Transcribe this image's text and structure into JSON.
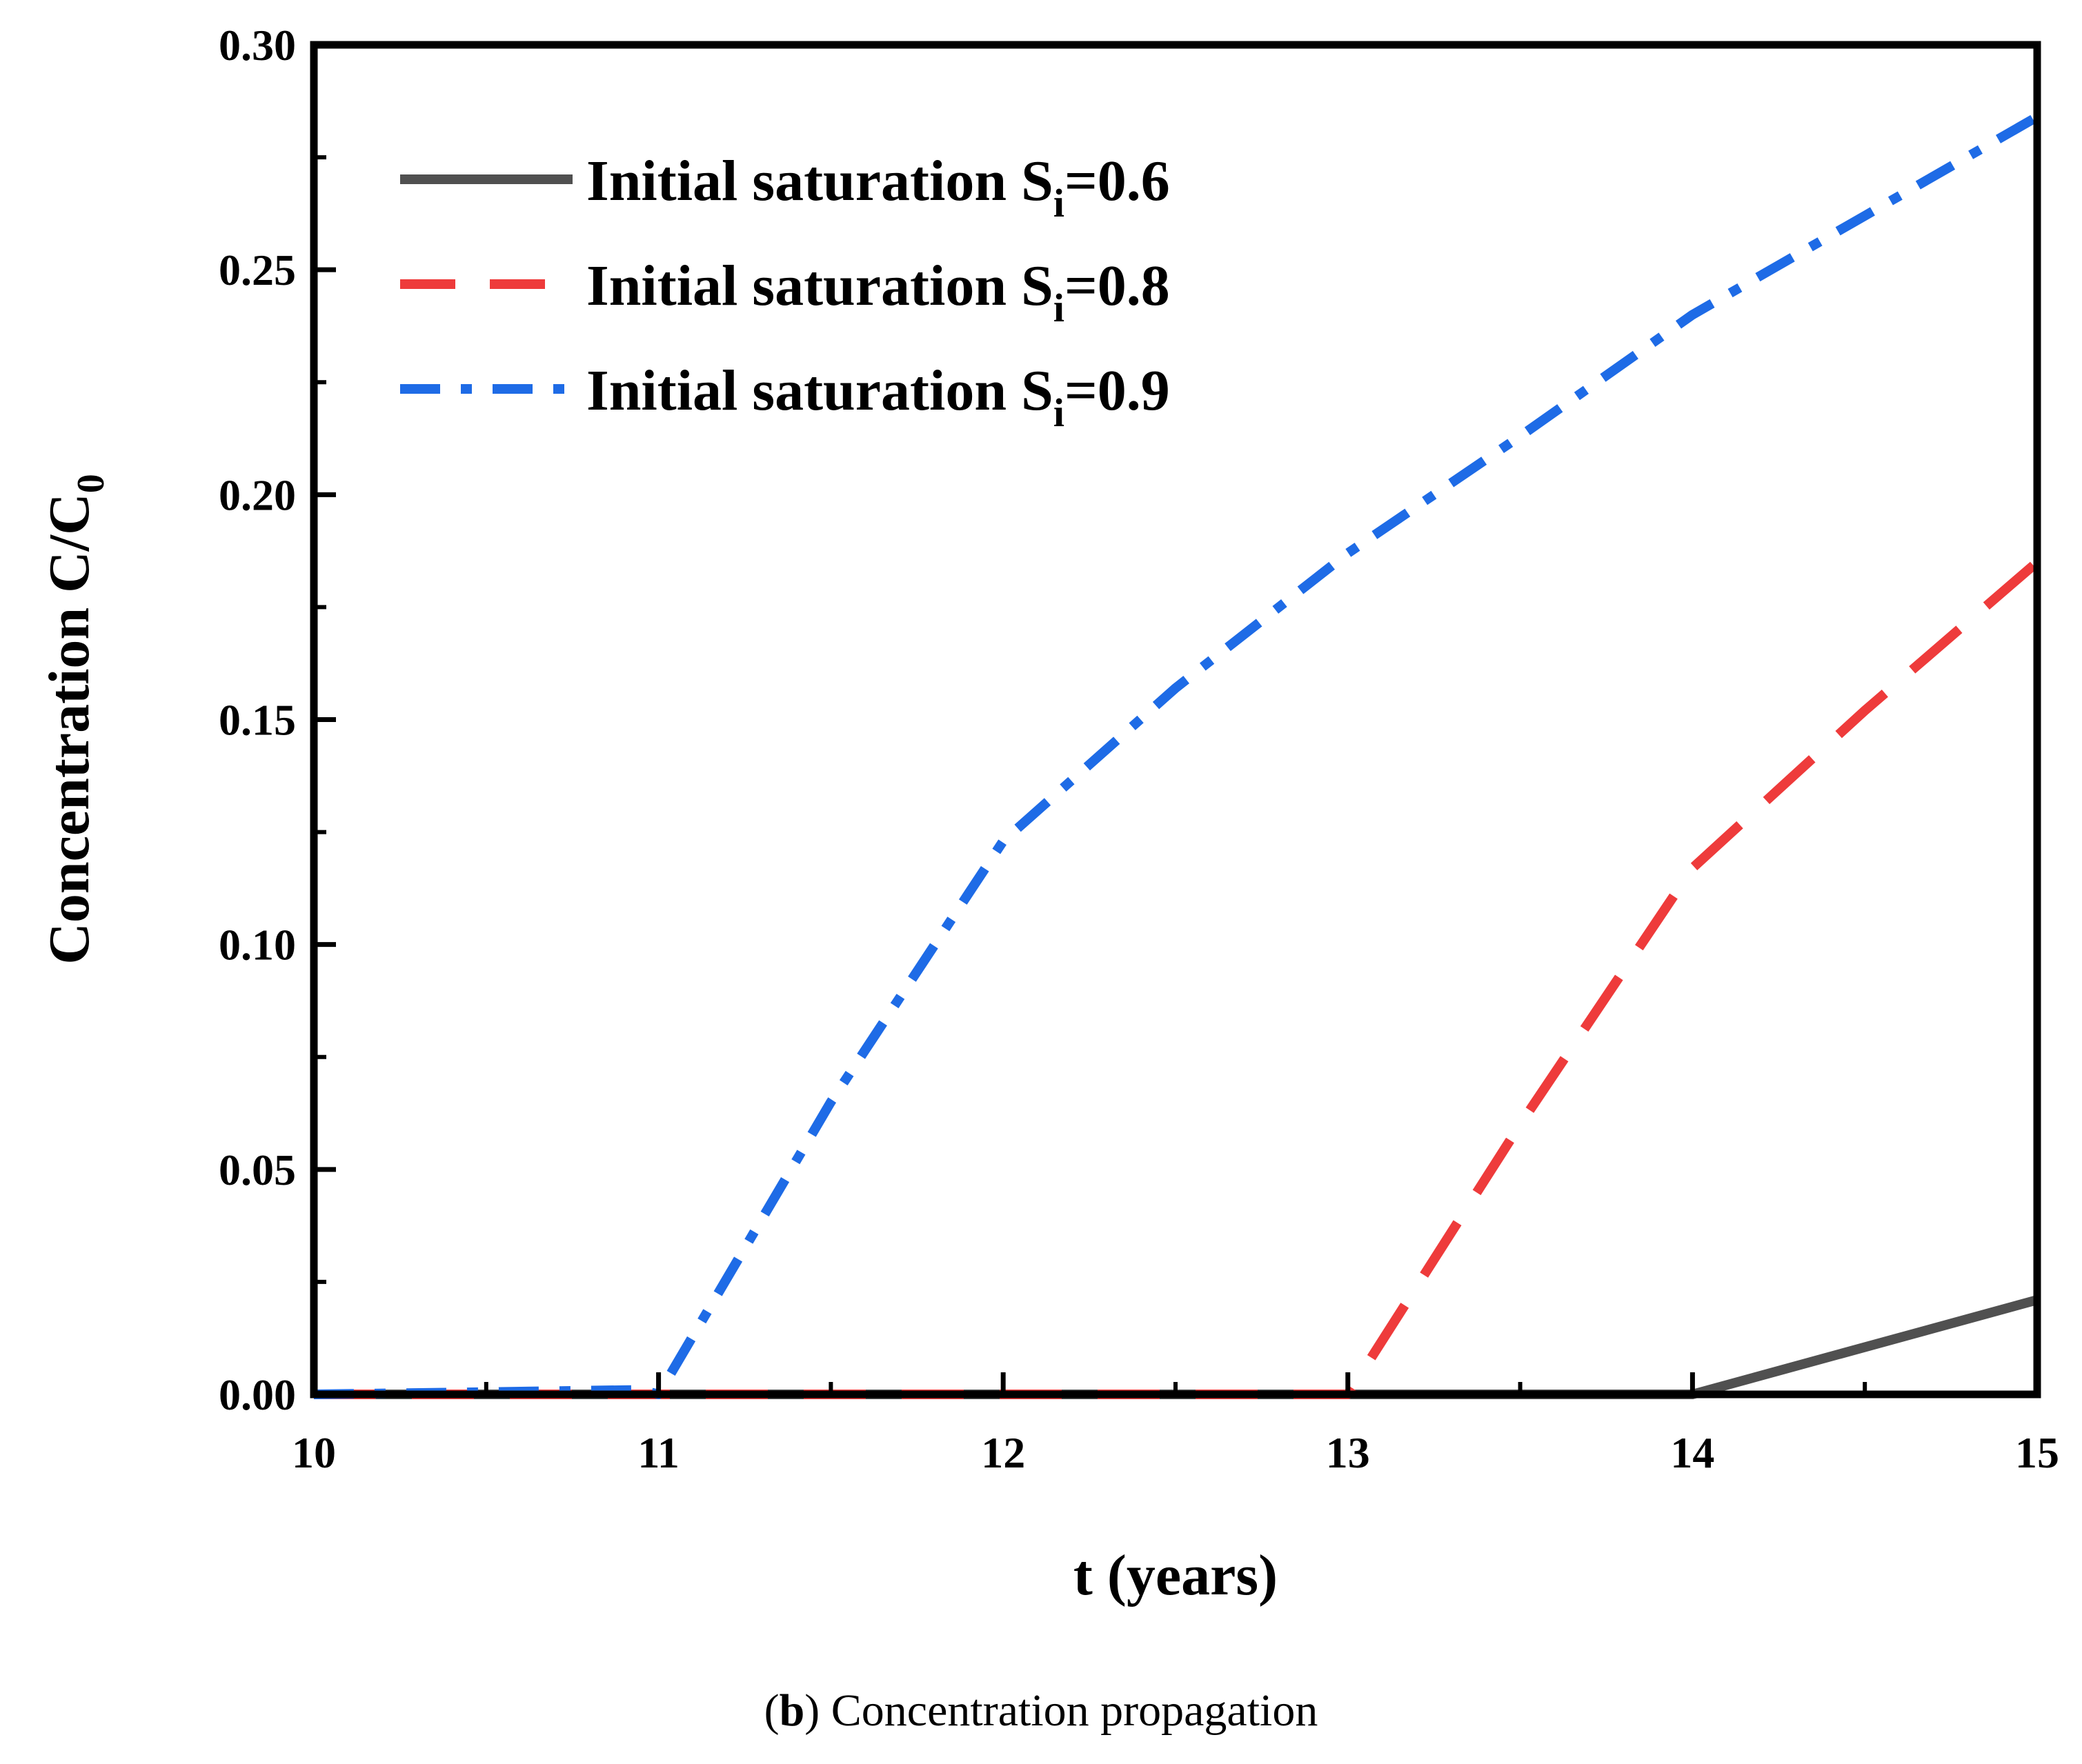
{
  "chart_data": {
    "type": "line",
    "title": "",
    "xlabel": "t (years)",
    "ylabel_main": "Concentration C/C",
    "ylabel_sub": "0",
    "xlim": [
      10,
      15
    ],
    "ylim": [
      0,
      0.3
    ],
    "x_ticks": [
      10,
      11,
      12,
      13,
      14,
      15
    ],
    "x_tick_labels": [
      "10",
      "11",
      "12",
      "13",
      "14",
      "15"
    ],
    "y_ticks": [
      0,
      0.05,
      0.1,
      0.15,
      0.2,
      0.25,
      0.3
    ],
    "y_tick_labels": [
      "0.00",
      "0.05",
      "0.10",
      "0.15",
      "0.20",
      "0.25",
      "0.30"
    ],
    "grid": false,
    "legend_position": "top-left",
    "series": [
      {
        "name": "Initial saturation Si=0.6",
        "label_main": "Initial saturation S",
        "label_sub": "i",
        "label_tail": "=0.6",
        "color": "#505050",
        "style": "solid",
        "x": [
          10,
          11,
          12,
          13,
          14,
          15
        ],
        "y": [
          0,
          0,
          0,
          0,
          0,
          0.021
        ]
      },
      {
        "name": "Initial saturation Si=0.8",
        "label_main": "Initial saturation S",
        "label_sub": "i",
        "label_tail": "=0.8",
        "color": "#EE3B3B",
        "style": "dash",
        "x": [
          10,
          11,
          12,
          13,
          13.5,
          14,
          14.5,
          15
        ],
        "y": [
          0,
          0,
          0,
          0,
          0.06,
          0.117,
          0.152,
          0.185
        ]
      },
      {
        "name": "Initial saturation Si=0.9",
        "label_main": "Initial saturation S",
        "label_sub": "i",
        "label_tail": "=0.9",
        "color": "#1E6BE6",
        "style": "dashdot",
        "x": [
          10,
          10.5,
          10.95,
          11,
          11.5,
          12,
          12.5,
          13,
          13.5,
          14,
          14.5,
          15
        ],
        "y": [
          0,
          0.0005,
          0.001,
          0,
          0.065,
          0.123,
          0.157,
          0.187,
          0.213,
          0.24,
          0.262,
          0.284
        ]
      }
    ]
  },
  "caption": {
    "label": "b",
    "text": " Concentration propagation"
  }
}
